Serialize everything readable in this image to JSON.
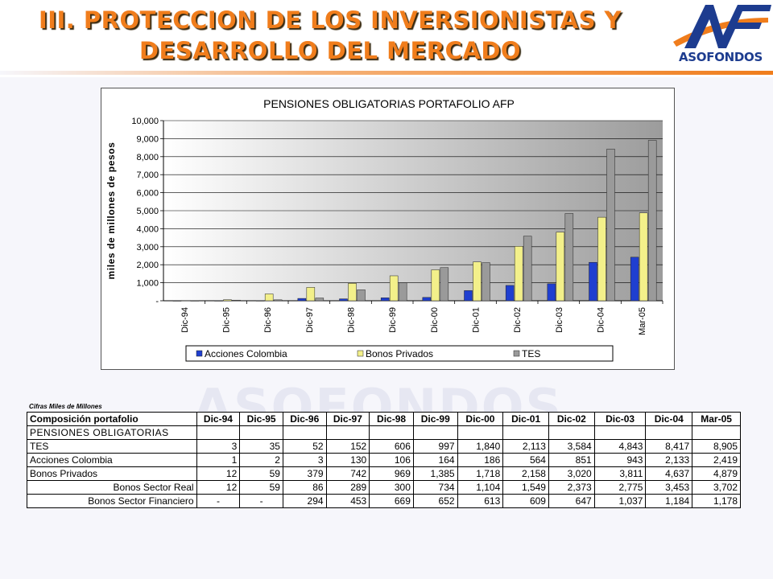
{
  "header": {
    "title_line1": "III. PROTECCION DE LOS INVERSIONISTAS Y",
    "title_line2": "DESARROLLO DEL MERCADO",
    "logo_text": "ASOFONDOS",
    "accent_color": "#f07d1c",
    "logo_color": "#1d3c8f"
  },
  "watermark": "ASOFONDOS",
  "chart_data": {
    "type": "bar",
    "title": "PENSIONES OBLIGATORIAS PORTAFOLIO AFP",
    "ylabel": "miles de millones de pesos",
    "xlabel": "",
    "ylim": [
      0,
      10000
    ],
    "yticks": [
      "-",
      "1,000",
      "2,000",
      "3,000",
      "4,000",
      "5,000",
      "6,000",
      "7,000",
      "8,000",
      "9,000",
      "10,000"
    ],
    "grid": true,
    "legend_position": "bottom",
    "categories": [
      "Dic-94",
      "Dic-95",
      "Dic-96",
      "Dic-97",
      "Dic-98",
      "Dic-99",
      "Dic-00",
      "Dic-01",
      "Dic-02",
      "Dic-03",
      "Dic-04",
      "Mar-05"
    ],
    "series": [
      {
        "name": "Acciones Colombia",
        "color": "#1f3fd0",
        "values": [
          1,
          2,
          3,
          130,
          106,
          164,
          186,
          564,
          851,
          943,
          2133,
          2419
        ]
      },
      {
        "name": "Bonos Privados",
        "color": "#f3f08a",
        "values": [
          12,
          59,
          379,
          742,
          969,
          1385,
          1718,
          2158,
          3020,
          3811,
          4637,
          4879
        ]
      },
      {
        "name": "TES",
        "color": "#9a9a9a",
        "values": [
          3,
          35,
          52,
          152,
          606,
          997,
          1840,
          2113,
          3584,
          4843,
          8417,
          8905
        ]
      }
    ]
  },
  "table": {
    "caption": "Cifras Miles de Millones",
    "header_label": "Composición portafolio",
    "columns": [
      "Dic-94",
      "Dic-95",
      "Dic-96",
      "Dic-97",
      "Dic-98",
      "Dic-99",
      "Dic-00",
      "Dic-01",
      "Dic-02",
      "Dic-03",
      "Dic-04",
      "Mar-05"
    ],
    "section_label": "PENSIONES OBLIGATORIAS",
    "rows": [
      {
        "label": "TES",
        "align": "left",
        "values": [
          "3",
          "35",
          "52",
          "152",
          "606",
          "997",
          "1,840",
          "2,113",
          "3,584",
          "4,843",
          "8,417",
          "8,905"
        ]
      },
      {
        "label": "Acciones Colombia",
        "align": "left",
        "values": [
          "1",
          "2",
          "3",
          "130",
          "106",
          "164",
          "186",
          "564",
          "851",
          "943",
          "2,133",
          "2,419"
        ]
      },
      {
        "label": "Bonos Privados",
        "align": "left",
        "values": [
          "12",
          "59",
          "379",
          "742",
          "969",
          "1,385",
          "1,718",
          "2,158",
          "3,020",
          "3,811",
          "4,637",
          "4,879"
        ]
      },
      {
        "label": "Bonos Sector Real",
        "align": "right",
        "values": [
          "12",
          "59",
          "86",
          "289",
          "300",
          "734",
          "1,104",
          "1,549",
          "2,373",
          "2,775",
          "3,453",
          "3,702"
        ]
      },
      {
        "label": "Bonos Sector Financiero",
        "align": "right",
        "values": [
          "-",
          "-",
          "294",
          "453",
          "669",
          "652",
          "613",
          "609",
          "647",
          "1,037",
          "1,184",
          "1,178"
        ]
      }
    ]
  }
}
